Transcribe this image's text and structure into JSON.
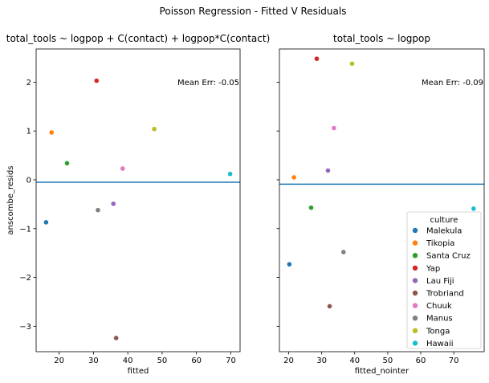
{
  "figure": {
    "title": "Poisson Regression - Fitted V Residuals"
  },
  "colors": {
    "hline": "#1f77b4"
  },
  "chart_data": [
    {
      "type": "scatter",
      "title": "total_tools ~ logpop + C(contact) + logpop*C(contact)",
      "xlabel": "fitted",
      "ylabel": "anscombe_resids",
      "xlim": [
        13.3,
        72.7
      ],
      "ylim": [
        -3.52,
        2.68
      ],
      "xticks": [
        20,
        30,
        40,
        50,
        60,
        70
      ],
      "yticks": [
        -3,
        -2,
        -1,
        0,
        1,
        2
      ],
      "show_yticklabels": true,
      "annotation": "Mean Err: -0.05",
      "hline": -0.05,
      "grid": false,
      "points": [
        {
          "culture": "Malekula",
          "x": 16.2,
          "y": -0.87,
          "color": "#1f77b4"
        },
        {
          "culture": "Tikopia",
          "x": 17.8,
          "y": 0.97,
          "color": "#ff7f0e"
        },
        {
          "culture": "Santa Cruz",
          "x": 22.3,
          "y": 0.34,
          "color": "#2ca02c"
        },
        {
          "culture": "Yap",
          "x": 30.9,
          "y": 2.03,
          "color": "#d62728"
        },
        {
          "culture": "Lau Fiji",
          "x": 35.8,
          "y": -0.49,
          "color": "#9467bd"
        },
        {
          "culture": "Trobriand",
          "x": 36.6,
          "y": -3.24,
          "color": "#8c564b"
        },
        {
          "culture": "Chuuk",
          "x": 38.5,
          "y": 0.23,
          "color": "#e377c2"
        },
        {
          "culture": "Manus",
          "x": 31.3,
          "y": -0.62,
          "color": "#7f7f7f"
        },
        {
          "culture": "Tonga",
          "x": 47.7,
          "y": 1.04,
          "color": "#bcbd22"
        },
        {
          "culture": "Hawaii",
          "x": 69.8,
          "y": 0.12,
          "color": "#17becf"
        }
      ]
    },
    {
      "type": "scatter",
      "title": "total_tools ~ logpop",
      "xlabel": "fitted_nointer",
      "ylabel": "",
      "xlim": [
        17.2,
        79.2
      ],
      "ylim": [
        -3.52,
        2.68
      ],
      "xticks": [
        20,
        30,
        40,
        50,
        60,
        70
      ],
      "yticks": [
        -3,
        -2,
        -1,
        0,
        1,
        2
      ],
      "show_yticklabels": false,
      "annotation": "Mean Err: -0.09",
      "hline": -0.09,
      "grid": false,
      "legend_position": "lower-right",
      "points": [
        {
          "culture": "Malekula",
          "x": 20.2,
          "y": -1.73,
          "color": "#1f77b4"
        },
        {
          "culture": "Tikopia",
          "x": 21.6,
          "y": 0.05,
          "color": "#ff7f0e"
        },
        {
          "culture": "Santa Cruz",
          "x": 26.8,
          "y": -0.57,
          "color": "#2ca02c"
        },
        {
          "culture": "Yap",
          "x": 28.5,
          "y": 2.48,
          "color": "#d62728"
        },
        {
          "culture": "Lau Fiji",
          "x": 31.9,
          "y": 0.19,
          "color": "#9467bd"
        },
        {
          "culture": "Trobriand",
          "x": 32.4,
          "y": -2.59,
          "color": "#8c564b"
        },
        {
          "culture": "Chuuk",
          "x": 33.7,
          "y": 1.06,
          "color": "#e377c2"
        },
        {
          "culture": "Manus",
          "x": 36.6,
          "y": -1.48,
          "color": "#7f7f7f"
        },
        {
          "culture": "Tonga",
          "x": 39.2,
          "y": 2.38,
          "color": "#bcbd22"
        },
        {
          "culture": "Hawaii",
          "x": 76.0,
          "y": -0.59,
          "color": "#17becf"
        }
      ]
    }
  ],
  "legend": {
    "title": "culture",
    "entries": [
      {
        "label": "Malekula",
        "color": "#1f77b4"
      },
      {
        "label": "Tikopia",
        "color": "#ff7f0e"
      },
      {
        "label": "Santa Cruz",
        "color": "#2ca02c"
      },
      {
        "label": "Yap",
        "color": "#d62728"
      },
      {
        "label": "Lau Fiji",
        "color": "#9467bd"
      },
      {
        "label": "Trobriand",
        "color": "#8c564b"
      },
      {
        "label": "Chuuk",
        "color": "#e377c2"
      },
      {
        "label": "Manus",
        "color": "#7f7f7f"
      },
      {
        "label": "Tonga",
        "color": "#bcbd22"
      },
      {
        "label": "Hawaii",
        "color": "#17becf"
      }
    ]
  }
}
